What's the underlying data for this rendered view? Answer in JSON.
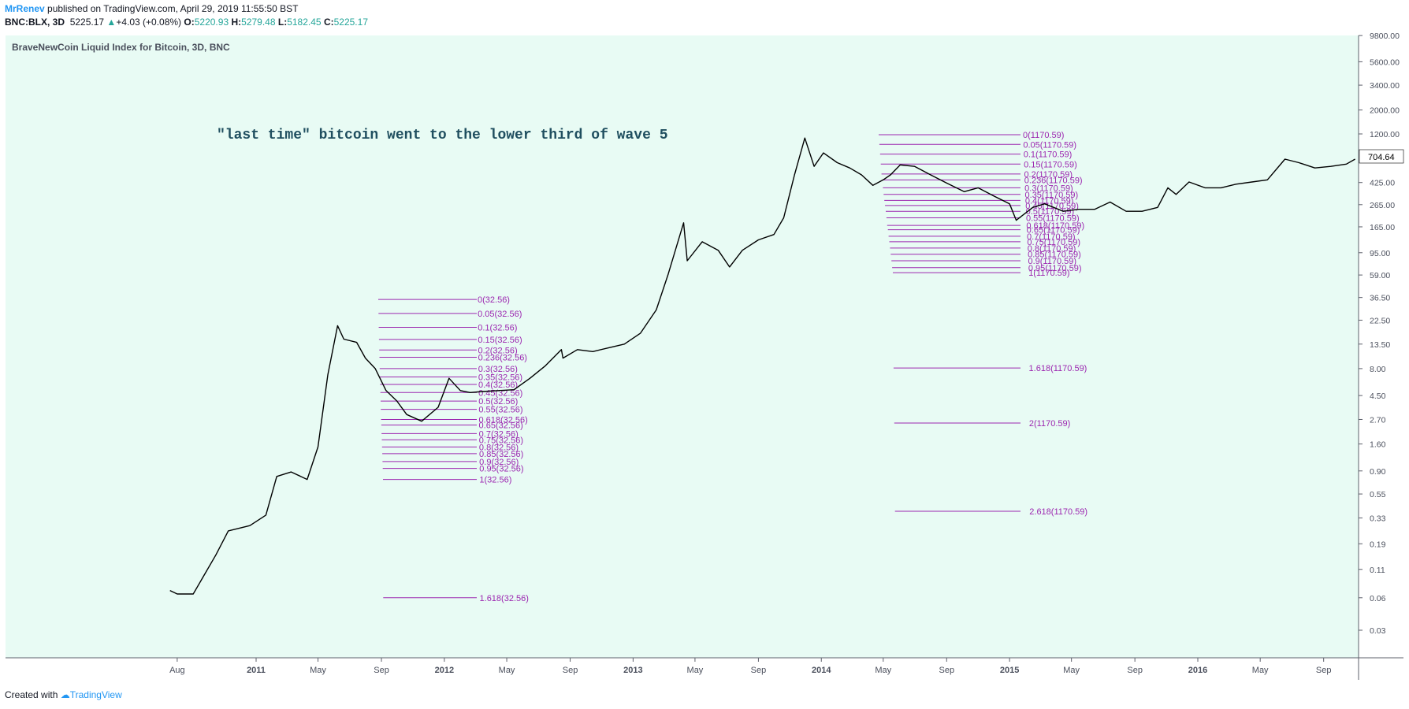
{
  "header": {
    "author": "MrRenev",
    "published_text": "published on TradingView.com, April 29, 2019 11:55:50 BST",
    "symbol": "BNC:BLX, 3D",
    "last": "5225.17",
    "change_arrow": "▲",
    "change": "+4.03 (+0.08%)",
    "o_label": "O:",
    "o_value": "5220.93",
    "h_label": "H:",
    "h_value": "5279.48",
    "l_label": "L:",
    "l_value": "5182.45",
    "c_label": "C:",
    "c_value": "5225.17"
  },
  "footer": {
    "created_with": "Created with",
    "brand": "TradingView"
  },
  "colors": {
    "background": "#e8fbf4",
    "price_line": "#000000",
    "fib": "#9c27b0",
    "annotation": "#1f4e5f",
    "last_price_tag": "#ffffff"
  },
  "chart_data": {
    "type": "line",
    "title": "BraveNewCoin Liquid Index for Bitcoin, 3D, BNC",
    "annotation": "\"last time\" bitcoin went to the lower third of wave 5",
    "y_scale": "log",
    "y_ticks": [
      "9800.00",
      "5600.00",
      "3400.00",
      "2000.00",
      "1200.00",
      "704.64",
      "425.00",
      "265.00",
      "165.00",
      "95.00",
      "59.00",
      "36.50",
      "22.50",
      "13.50",
      "8.00",
      "4.50",
      "2.70",
      "1.60",
      "0.90",
      "0.55",
      "0.33",
      "0.19",
      "0.11",
      "0.06",
      "0.03"
    ],
    "last_price": "704.64",
    "x_ticks": [
      "Aug",
      "2011",
      "May",
      "Sep",
      "2012",
      "May",
      "Sep",
      "2013",
      "May",
      "Sep",
      "2014",
      "May",
      "Sep",
      "2015",
      "May",
      "Sep",
      "2016",
      "May",
      "Sep"
    ],
    "series": [
      {
        "x": [
          "2010-07-18",
          "2010-08-01",
          "2010-09-01",
          "2010-10-15",
          "2010-11-08",
          "2010-12-20",
          "2011-01-20",
          "2011-02-10",
          "2011-03-10",
          "2011-04-10",
          "2011-05-01",
          "2011-05-20",
          "2011-06-08",
          "2011-06-20",
          "2011-07-15",
          "2011-08-01",
          "2011-08-20",
          "2011-09-10",
          "2011-10-01",
          "2011-10-20",
          "2011-11-18",
          "2011-12-20",
          "2012-01-10",
          "2012-02-01",
          "2012-02-20",
          "2012-03-15",
          "2012-04-15",
          "2012-05-15",
          "2012-06-15",
          "2012-07-15",
          "2012-08-15",
          "2012-08-18",
          "2012-09-15",
          "2012-10-15",
          "2012-11-15",
          "2012-12-15",
          "2013-01-15",
          "2013-02-15",
          "2013-03-10",
          "2013-04-09",
          "2013-04-16",
          "2013-05-15",
          "2013-06-15",
          "2013-07-07",
          "2013-08-01",
          "2013-09-01",
          "2013-10-01",
          "2013-10-20",
          "2013-11-10",
          "2013-11-30",
          "2013-12-18",
          "2014-01-05",
          "2014-02-01",
          "2014-02-25",
          "2014-03-20",
          "2014-04-11",
          "2014-05-01",
          "2014-05-15",
          "2014-06-03",
          "2014-07-01",
          "2014-08-01",
          "2014-09-01",
          "2014-10-05",
          "2014-11-01",
          "2014-12-01",
          "2015-01-01",
          "2015-01-14",
          "2015-02-15",
          "2015-03-10",
          "2015-04-15",
          "2015-05-15",
          "2015-06-15",
          "2015-07-15",
          "2015-08-15",
          "2015-09-15",
          "2015-10-15",
          "2015-11-04",
          "2015-11-20",
          "2015-12-15",
          "2016-01-15",
          "2016-02-15",
          "2016-03-15",
          "2016-04-15",
          "2016-05-15",
          "2016-06-18",
          "2016-07-15",
          "2016-08-15",
          "2016-09-15",
          "2016-10-15",
          "2016-11-01"
        ],
        "y": [
          0.07,
          0.065,
          0.065,
          0.15,
          0.25,
          0.28,
          0.35,
          0.8,
          0.88,
          0.75,
          1.5,
          7.0,
          20.0,
          15.0,
          14.0,
          10.0,
          8.0,
          5.0,
          4.0,
          3.0,
          2.6,
          3.5,
          6.5,
          5.0,
          4.8,
          4.9,
          5.0,
          5.1,
          6.5,
          8.5,
          12.0,
          10.0,
          12.0,
          11.5,
          12.5,
          13.5,
          17.0,
          28.0,
          60.0,
          180.0,
          80.0,
          120.0,
          100.0,
          70.0,
          100.0,
          125.0,
          140.0,
          200.0,
          500.0,
          1100.0,
          600.0,
          800.0,
          650.0,
          580.0,
          500.0,
          400.0,
          450.0,
          500.0,
          620.0,
          600.0,
          500.0,
          420.0,
          350.0,
          380.0,
          320.0,
          270.0,
          190.0,
          250.0,
          270.0,
          230.0,
          240.0,
          240.0,
          280.0,
          230.0,
          230.0,
          250.0,
          380.0,
          330.0,
          430.0,
          380.0,
          380.0,
          410.0,
          430.0,
          450.0,
          700.0,
          650.0,
          580.0,
          600.0,
          630.0,
          700.0
        ]
      }
    ],
    "fib_left": {
      "base": "32.56",
      "levels": [
        "0",
        "0.05",
        "0.1",
        "0.15",
        "0.2",
        "0.236",
        "0.3",
        "0.35",
        "0.4",
        "0.45",
        "0.5",
        "0.55",
        "0.618",
        "0.65",
        "0.7",
        "0.75",
        "0.8",
        "0.85",
        "0.9",
        "0.95",
        "1",
        "1.618"
      ],
      "prices": [
        35.0,
        26.0,
        19.3,
        14.9,
        11.9,
        10.2,
        8.0,
        6.7,
        5.7,
        4.8,
        4.0,
        3.35,
        2.7,
        2.4,
        2.0,
        1.75,
        1.5,
        1.3,
        1.1,
        0.95,
        0.75,
        0.06
      ]
    },
    "fib_right": {
      "base": "1170.59",
      "levels": [
        "0",
        "0.05",
        "0.1",
        "0.15",
        "0.2",
        "0.236",
        "0.3",
        "0.35",
        "0.4",
        "0.45",
        "0.5",
        "0.55",
        "0.618",
        "0.65",
        "0.7",
        "0.75",
        "0.8",
        "0.85",
        "0.9",
        "0.95",
        "1",
        "1.618",
        "2",
        "2.618"
      ],
      "prices": [
        1180.0,
        960.0,
        780.0,
        630.0,
        510.0,
        450.0,
        380.0,
        330.0,
        290.0,
        260.0,
        230.0,
        200.0,
        170.0,
        155.0,
        135.0,
        120.0,
        105.0,
        92.0,
        80.0,
        69.0,
        62.0,
        8.1,
        2.5,
        0.38
      ]
    }
  }
}
